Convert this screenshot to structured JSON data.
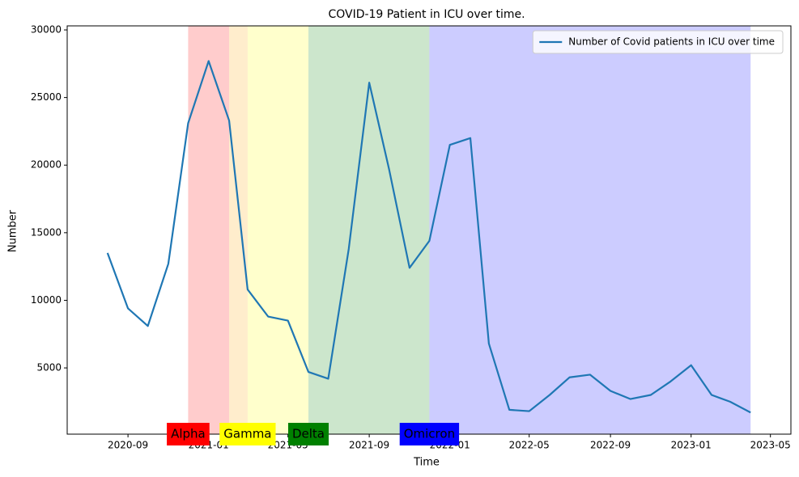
{
  "chart_data": {
    "type": "line",
    "title": "COVID-19 Patient in ICU over time.",
    "xlabel": "Time",
    "ylabel": "Number",
    "x": [
      "2020-08",
      "2020-09",
      "2020-10",
      "2020-11",
      "2020-12",
      "2021-01",
      "2021-02",
      "2021-03",
      "2021-04",
      "2021-05",
      "2021-06",
      "2021-07",
      "2021-08",
      "2021-09",
      "2021-10",
      "2021-11",
      "2021-12",
      "2022-01",
      "2022-02",
      "2022-03",
      "2022-04",
      "2022-05",
      "2022-06",
      "2022-07",
      "2022-08",
      "2022-09",
      "2022-10",
      "2022-11",
      "2022-12",
      "2023-01",
      "2023-02",
      "2023-03",
      "2023-04"
    ],
    "series": [
      {
        "name": "Number of Covid patients in ICU over time",
        "color": "#1f77b4",
        "values": [
          13500,
          9400,
          8100,
          12700,
          23100,
          27700,
          23300,
          10800,
          8800,
          8500,
          4700,
          4200,
          13800,
          26100,
          19700,
          12400,
          14400,
          21500,
          22000,
          6800,
          1900,
          1800,
          3000,
          4300,
          4500,
          3300,
          2700,
          3000,
          4000,
          5200,
          3000,
          2500,
          1700
        ]
      }
    ],
    "spans": [
      {
        "label": "Alpha",
        "color": "red",
        "start": "2020-12",
        "end": "2021-02"
      },
      {
        "color": "orange",
        "start": "2021-02",
        "end": "2021-03"
      },
      {
        "label": "Gamma",
        "color": "yellow",
        "start": "2021-03",
        "end": "2021-06"
      },
      {
        "label": "Delta",
        "color": "green",
        "start": "2021-06",
        "end": "2021-12"
      },
      {
        "label": "Omicron",
        "color": "blue",
        "start": "2021-12",
        "end": "2023-04"
      }
    ],
    "xlim": [
      "2020-06",
      "2023-06"
    ],
    "xticks": [
      "2020-09",
      "2021-01",
      "2021-05",
      "2021-09",
      "2022-01",
      "2022-05",
      "2022-09",
      "2023-01",
      "2023-05"
    ],
    "ylim": [
      100,
      30300
    ],
    "yticks": [
      5000,
      10000,
      15000,
      20000,
      25000,
      30000
    ],
    "legend": "upper right"
  }
}
